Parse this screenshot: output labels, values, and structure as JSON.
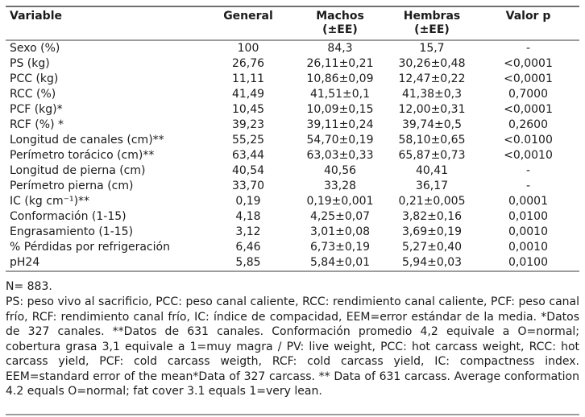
{
  "page": {
    "colors": {
      "background": "#ffffff",
      "text": "#1b1b1b",
      "rule_dark": "#6f6f6f",
      "rule_light": "#9c9c9c"
    }
  },
  "table": {
    "columns": [
      {
        "label": "Variable",
        "sublabel": ""
      },
      {
        "label": "General",
        "sublabel": ""
      },
      {
        "label": "Machos",
        "sublabel": "(±EE)"
      },
      {
        "label": "Hembras",
        "sublabel": "(±EE)"
      },
      {
        "label": "Valor p",
        "sublabel": ""
      }
    ],
    "rows": [
      [
        "Sexo (%)",
        "100",
        "84,3",
        "15,7",
        "-"
      ],
      [
        "PS (kg)",
        "26,76",
        "26,11±0,21",
        "30,26±0,48",
        "<0,0001"
      ],
      [
        "PCC (kg)",
        "11,11",
        "10,86±0,09",
        "12,47±0,22",
        "<0,0001"
      ],
      [
        "RCC (%)",
        "41,49",
        "41,51±0,1",
        "41,38±0,3",
        "0,7000"
      ],
      [
        "PCF (kg)*",
        "10,45",
        "10,09±0,15",
        "12,00±0,31",
        "<0,0001"
      ],
      [
        "RCF (%) *",
        "39,23",
        "39,11±0,24",
        "39,74±0,5",
        "0,2600"
      ],
      [
        "Longitud de canales (cm)**",
        "55,25",
        "54,70±0,19",
        "58,10±0,65",
        "<0.0100"
      ],
      [
        "Perímetro torácico (cm)**",
        "63,44",
        "63,03±0,33",
        "65,87±0,73",
        "<0,0010"
      ],
      [
        "Longitud de pierna (cm)",
        "40,54",
        "40,56",
        "40,41",
        "-"
      ],
      [
        "Perímetro pierna (cm)",
        "33,70",
        "33,28",
        "36,17",
        "-"
      ],
      [
        "IC (kg cm⁻¹)**",
        "0,19",
        "0,19±0,001",
        "0,21±0,005",
        "0,0001"
      ],
      [
        "Conformación (1-15)",
        "4,18",
        "4,25±0,07",
        "3,82±0,16",
        "0,0100"
      ],
      [
        "Engrasamiento (1-15)",
        "3,12",
        "3,01±0,08",
        "3,69±0,19",
        "0,0010"
      ],
      [
        "% Pérdidas por refrigeración",
        "6,46",
        "6,73±0,19",
        "5,27±0,40",
        "0,0010"
      ],
      [
        "pH24",
        "5,85",
        "5,84±0,01",
        "5,94±0,03",
        "0,0100"
      ]
    ]
  },
  "notes": {
    "sample_size": "N= 883.",
    "footnote": "PS: peso vivo al sacrificio, PCC: peso canal caliente, RCC: rendimiento canal caliente, PCF: peso canal frío, RCF: rendimiento canal frío, IC: índice de compacidad, EEM=error estándar de la media. *Datos de 327 canales. **Datos de 631 canales. Conformación promedio 4,2 equivale a O=normal; cobertura grasa 3,1 equivale a 1=muy magra / PV: live weight, PCC: hot carcass weight, RCC: hot carcass yield, PCF: cold carcass weigth, RCF: cold carcass yield, IC: compactness index. EEM=standard error of the mean*Data of 327 carcass. ** Data of 631 carcass. Average conformation 4.2 equals O=normal; fat cover 3.1 equals 1=very lean."
  }
}
